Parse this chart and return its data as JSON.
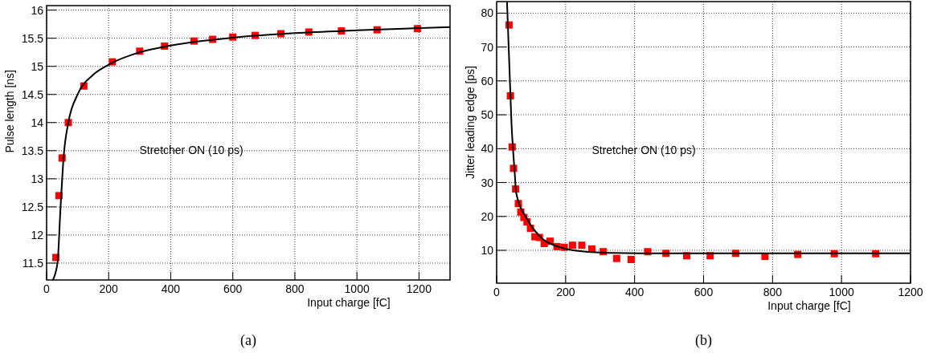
{
  "chart_data": [
    {
      "type": "scatter",
      "xlabel": "Input charge [fC]",
      "ylabel": "Pulse length [ns]",
      "xlim": [
        0,
        1300
      ],
      "ylim": [
        11.2,
        16.08
      ],
      "xticks": [
        0,
        200,
        400,
        600,
        800,
        1000,
        1200
      ],
      "yticks": [
        11.5,
        12,
        12.5,
        13,
        13.5,
        14,
        14.5,
        15,
        15.5,
        16
      ],
      "grid": true,
      "annotations": [
        "Stretcher ON (10 ps)",
        "(a)"
      ],
      "series": [
        {
          "marker": "square",
          "color": "#ff0000",
          "x": [
            30,
            40,
            50,
            70,
            120,
            212,
            300,
            380,
            475,
            535,
            600,
            672,
            755,
            845,
            950,
            1065,
            1195
          ],
          "values": [
            11.6,
            12.7,
            13.37,
            14.0,
            14.65,
            15.08,
            15.27,
            15.36,
            15.45,
            15.48,
            15.52,
            15.55,
            15.58,
            15.61,
            15.63,
            15.65,
            15.67
          ]
        },
        {
          "type": "line",
          "marker": "none",
          "color": "#000000",
          "line_style": "solid",
          "x": [
            20,
            35,
            45,
            55,
            70,
            100,
            150,
            200,
            300,
            400,
            600,
            800,
            1000,
            1300
          ],
          "values": [
            11.2,
            11.5,
            12.5,
            13.4,
            14.0,
            14.5,
            14.85,
            15.03,
            15.25,
            15.37,
            15.51,
            15.59,
            15.64,
            15.7
          ]
        }
      ]
    },
    {
      "type": "scatter",
      "xlabel": "Input charge [fC]",
      "ylabel": "Jitter leading edge [ps]",
      "xlim": [
        0,
        1200
      ],
      "ylim": [
        0.3,
        83.4
      ],
      "xticks": [
        0,
        200,
        400,
        600,
        800,
        1000,
        1200
      ],
      "yticks": [
        10,
        20,
        30,
        40,
        50,
        60,
        70,
        80
      ],
      "grid": true,
      "annotations": [
        "Stretcher ON (10 ps)",
        "(b)"
      ],
      "series": [
        {
          "marker": "square",
          "color": "#ff0000",
          "x": [
            36,
            40,
            45,
            49,
            55,
            63,
            70,
            79,
            88,
            98,
            111,
            124,
            138,
            155,
            175,
            196,
            220,
            247,
            276,
            309,
            348,
            390,
            438,
            491,
            551,
            619,
            693,
            778,
            873,
            979,
            1099
          ],
          "values": [
            76.5,
            55.6,
            40.5,
            34.2,
            28.1,
            23.8,
            21.3,
            19.7,
            18.4,
            16.5,
            14.0,
            13.8,
            12.0,
            12.7,
            11.1,
            10.9,
            11.5,
            11.5,
            10.4,
            9.6,
            7.6,
            7.3,
            9.6,
            9.1,
            8.4,
            8.4,
            9.1,
            8.2,
            8.8,
            9.0,
            9.0
          ]
        },
        {
          "type": "line",
          "marker": "none",
          "color": "#000000",
          "line_style": "solid",
          "x": [
            30,
            43,
            53,
            56.5,
            88,
            133,
            178,
            222,
            312,
            491,
            1198
          ],
          "values": [
            83.4,
            47.5,
            32,
            27,
            19.3,
            13.4,
            11.1,
            10,
            9.3,
            9.1,
            9.1
          ]
        }
      ]
    }
  ]
}
